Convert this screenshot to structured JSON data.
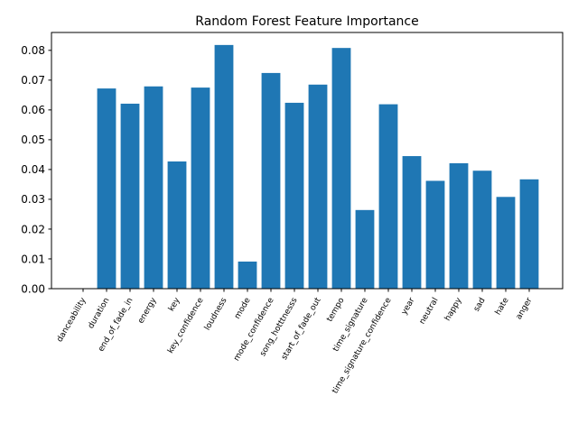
{
  "chart_data": {
    "type": "bar",
    "title": "Random Forest Feature Importance",
    "xlabel": "",
    "ylabel": "",
    "categories": [
      "danceability",
      "duration",
      "end_of_fade_in",
      "energy",
      "key",
      "key_confidence",
      "loudness",
      "mode",
      "mode_confidence",
      "song_hotttnesss",
      "start_of_fade_out",
      "tempo",
      "time_signature",
      "time_signature_confidence",
      "year",
      "neutral",
      "happy",
      "sad",
      "hate",
      "anger"
    ],
    "values": [
      0.0,
      0.0672,
      0.0621,
      0.0679,
      0.0427,
      0.0675,
      0.0818,
      0.0091,
      0.0724,
      0.0624,
      0.0685,
      0.0808,
      0.0264,
      0.0619,
      0.0445,
      0.0362,
      0.0421,
      0.0396,
      0.0308,
      0.0367
    ],
    "ylim": [
      0,
      0.086
    ],
    "yticks": [
      "0.00",
      "0.01",
      "0.02",
      "0.03",
      "0.04",
      "0.05",
      "0.06",
      "0.07",
      "0.08"
    ],
    "bar_color": "#1f77b4",
    "xtick_rotation_deg": 60,
    "grid": false
  }
}
